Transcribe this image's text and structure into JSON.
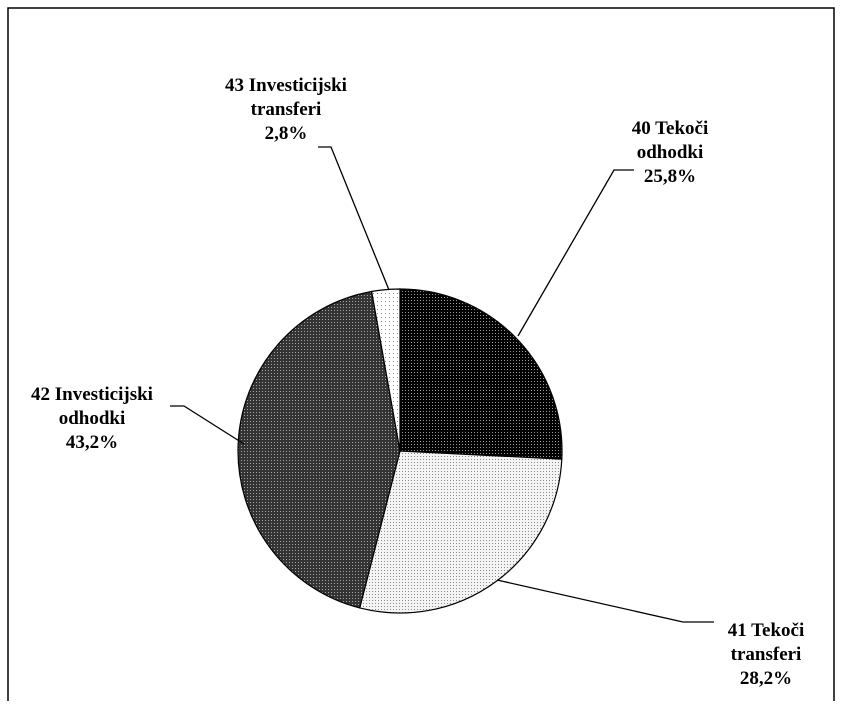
{
  "chart_data": {
    "type": "pie",
    "slices": [
      {
        "label_lines": [
          "40 Tekoči",
          "odhodki",
          "25,8%"
        ],
        "value": 25.8,
        "pattern": "dense-dots"
      },
      {
        "label_lines": [
          "41 Tekoči",
          "transferi",
          "28,2%"
        ],
        "value": 28.2,
        "pattern": "light-dots"
      },
      {
        "label_lines": [
          "42 Investicijski",
          "odhodki",
          "43,2%"
        ],
        "value": 43.2,
        "pattern": "dark-dots"
      },
      {
        "label_lines": [
          "43 Investicijski",
          "transferi",
          "2,8%"
        ],
        "value": 2.8,
        "pattern": "sparse-dots"
      }
    ],
    "start_direction": "top",
    "direction": "clockwise",
    "legend": "none"
  }
}
